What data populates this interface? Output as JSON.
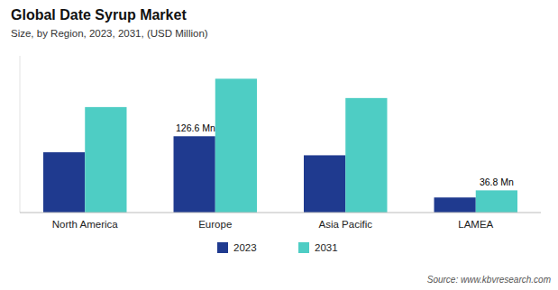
{
  "chart_data": {
    "type": "bar",
    "title": "Global Date Syrup Market",
    "subtitle": "Size, by Region, 2023, 2031, (USD Million)",
    "categories": [
      "North America",
      "Europe",
      "Asia Pacific",
      "LAMEA"
    ],
    "series": [
      {
        "name": "2023",
        "color": "#1f3a8f",
        "values": [
          100,
          126.6,
          95,
          25
        ]
      },
      {
        "name": "2031",
        "color": "#4ecdc4",
        "values": [
          175,
          222,
          190,
          36.8
        ]
      }
    ],
    "ylim": [
      0,
      260
    ],
    "grid": false,
    "legend": "bottom",
    "tick_labels": "x",
    "annotations": [
      {
        "text": "126.6 Mn",
        "category": "Europe",
        "series": "2023"
      },
      {
        "text": "36.8 Mn",
        "category": "LAMEA",
        "series": "2031"
      }
    ],
    "source": "Source: www.kbvresearch.com"
  }
}
